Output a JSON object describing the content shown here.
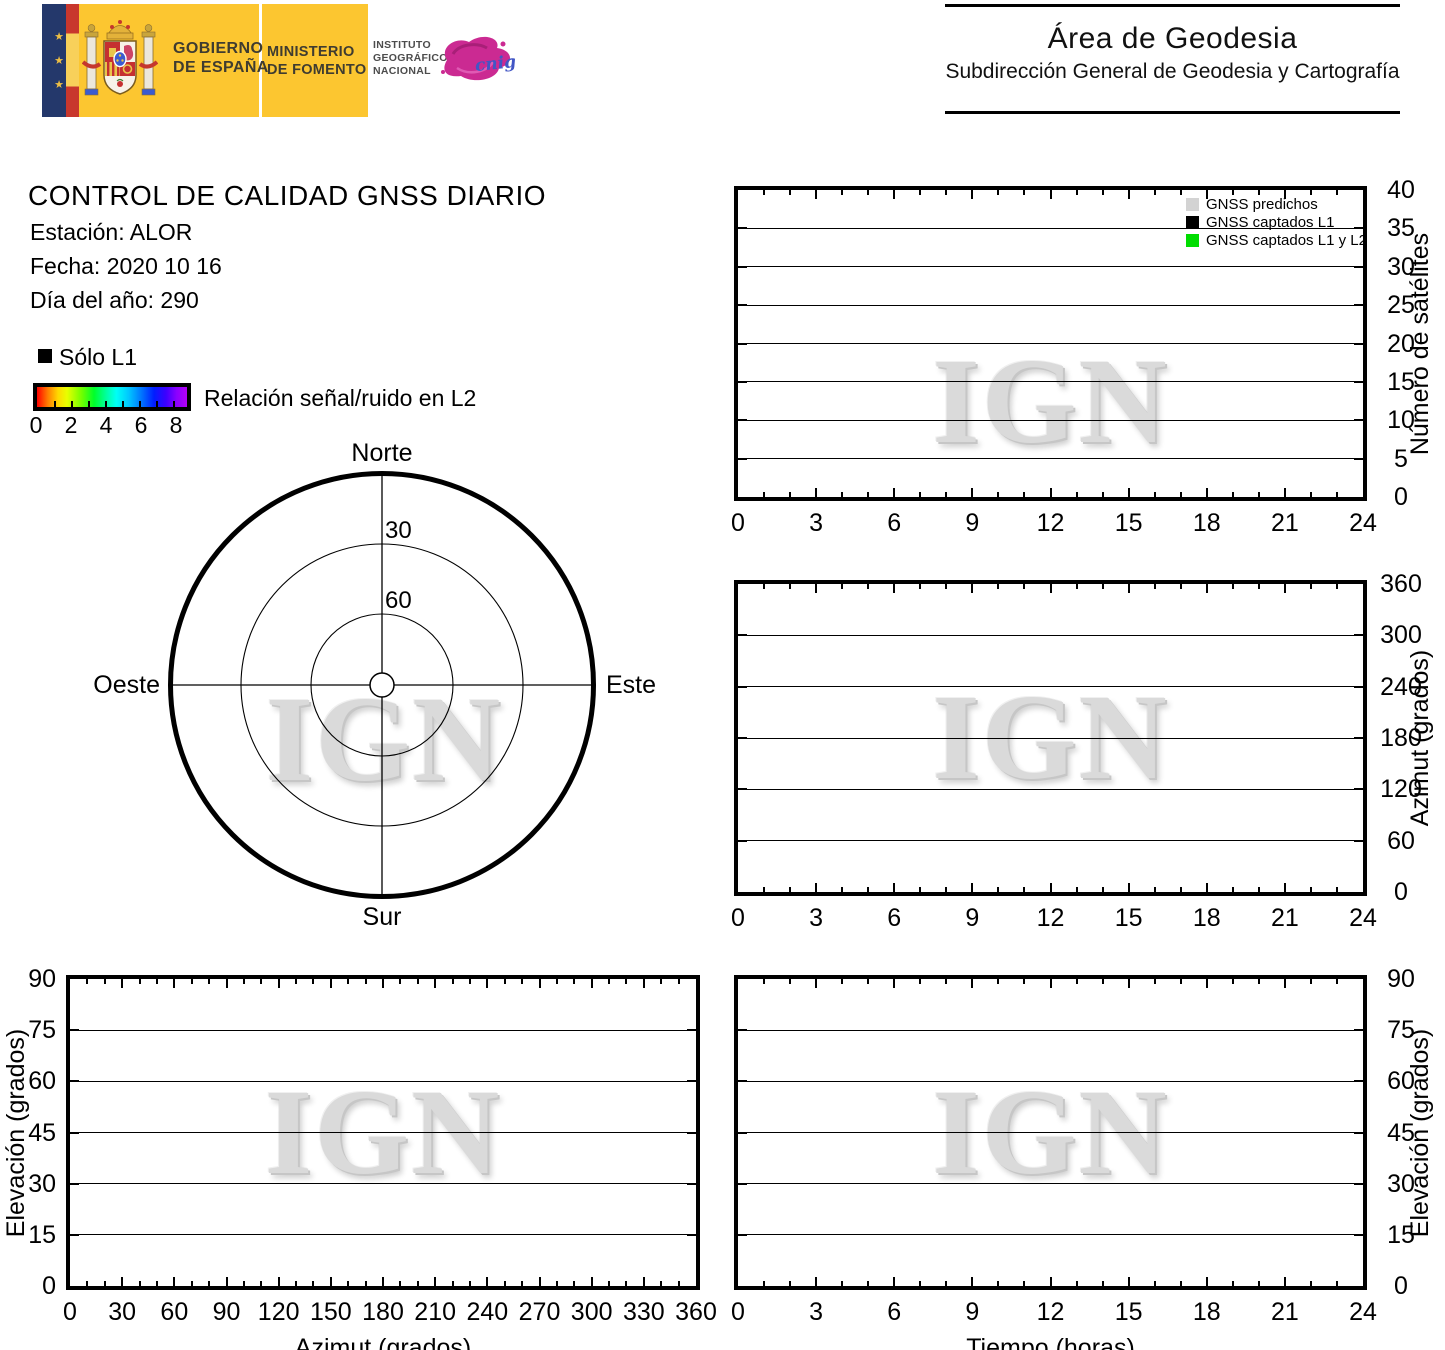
{
  "watermark_text": "IGN",
  "header": {
    "gobierno_line1": "GOBIERNO",
    "gobierno_line2": "DE ESPAÑA",
    "ministerio_line1": "MINISTERIO",
    "ministerio_line2": "DE FOMENTO",
    "instituto_line1": "INSTITUTO",
    "instituto_line2": "GEOGRÁFICO",
    "instituto_line3": "NACIONAL",
    "cnig_label": "cnig",
    "area_title": "Área de Geodesia",
    "area_subtitle": "Subdirección General de Geodesia y Cartografía"
  },
  "report": {
    "title": "CONTROL DE CALIDAD GNSS DIARIO",
    "station_label": "Estación: ALOR",
    "date_label": "Fecha: 2020 10 16",
    "doy_label": "Día del año: 290"
  },
  "snr_legend": {
    "solo_l1": "Sólo L1",
    "colorbar_title": "Relación señal/ruido en L2",
    "colorbar_ticks": [
      "0",
      "2",
      "4",
      "6",
      "8"
    ],
    "colorbar_range": [
      0,
      8.8
    ]
  },
  "chart_data": [
    {
      "type": "polar",
      "compass_labels": {
        "north": "Norte",
        "south": "Sur",
        "east": "Este",
        "west": "Oeste"
      },
      "elevation_rings": [
        30,
        60
      ],
      "ring_tick_labels": [
        "30",
        "60"
      ],
      "series": []
    },
    {
      "type": "line",
      "title": "",
      "xlabel": "",
      "ylabel": "Número de satélites",
      "xlim": [
        0,
        24
      ],
      "ylim": [
        0,
        40
      ],
      "x_ticks": [
        0,
        3,
        6,
        9,
        12,
        15,
        18,
        21,
        24
      ],
      "x_minor_step": 1,
      "y_ticks": [
        0,
        5,
        10,
        15,
        20,
        25,
        30,
        35,
        40
      ],
      "grid": "horizontal",
      "legend_position": "top-right",
      "legend": [
        {
          "label": "GNSS predichos",
          "color": "#d3d3d3"
        },
        {
          "label": "GNSS captados L1",
          "color": "#000000"
        },
        {
          "label": "GNSS captados L1 y L2",
          "color": "#00dd00"
        }
      ],
      "series": []
    },
    {
      "type": "line",
      "title": "",
      "xlabel": "",
      "ylabel": "Azimut (grados)",
      "xlim": [
        0,
        24
      ],
      "ylim": [
        0,
        360
      ],
      "x_ticks": [
        0,
        3,
        6,
        9,
        12,
        15,
        18,
        21,
        24
      ],
      "x_minor_step": 1,
      "y_ticks": [
        0,
        60,
        120,
        180,
        240,
        300,
        360
      ],
      "grid": "horizontal",
      "series": []
    },
    {
      "type": "line",
      "title": "",
      "xlabel": "Azimut (grados)",
      "ylabel": "Elevación (grados)",
      "xlim": [
        0,
        360
      ],
      "ylim": [
        0,
        90
      ],
      "x_ticks": [
        0,
        30,
        60,
        90,
        120,
        150,
        180,
        210,
        240,
        270,
        300,
        330,
        360
      ],
      "x_minor_step": 10,
      "y_ticks": [
        0,
        15,
        30,
        45,
        60,
        75,
        90
      ],
      "grid": "horizontal",
      "series": []
    },
    {
      "type": "line",
      "title": "",
      "xlabel": "Tiempo (horas)",
      "ylabel": "Elevación (grados)",
      "xlim": [
        0,
        24
      ],
      "ylim": [
        0,
        90
      ],
      "x_ticks": [
        0,
        3,
        6,
        9,
        12,
        15,
        18,
        21,
        24
      ],
      "x_minor_step": 1,
      "y_ticks": [
        0,
        15,
        30,
        45,
        60,
        75,
        90
      ],
      "grid": "horizontal",
      "series": []
    }
  ]
}
